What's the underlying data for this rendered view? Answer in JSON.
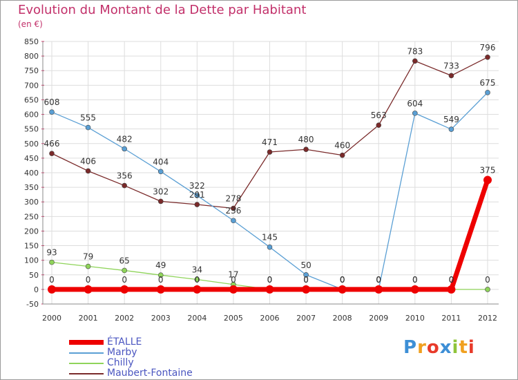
{
  "header": {
    "title": "Evolution du Montant de la Dette par Habitant",
    "subtitle": "(en €)"
  },
  "chart_data": {
    "type": "line",
    "title": "Evolution du Montant de la Dette par Habitant",
    "subtitle": "(en €)",
    "xlabel": "",
    "ylabel": "",
    "ylim": [
      -50,
      850
    ],
    "yticks": [
      -50,
      0,
      50,
      100,
      150,
      200,
      250,
      300,
      350,
      400,
      450,
      500,
      550,
      600,
      650,
      700,
      750,
      800,
      850
    ],
    "grid": true,
    "x": [
      "2000",
      "2001",
      "2002",
      "2003",
      "2004",
      "2005",
      "2006",
      "2007",
      "2008",
      "2009",
      "2010",
      "2011",
      "2012"
    ],
    "series": [
      {
        "name": "ÉTALLE",
        "color": "#ee0000",
        "values": [
          0,
          0,
          0,
          0,
          0,
          0,
          0,
          0,
          0,
          0,
          0,
          0,
          375
        ],
        "labels": [
          "0",
          "0",
          "0",
          "0",
          "0",
          "0",
          "0",
          "0",
          "0",
          "0",
          "0",
          "0",
          "375"
        ]
      },
      {
        "name": "Marby",
        "color": "#5a9fd4",
        "values": [
          608,
          555,
          482,
          404,
          322,
          236,
          145,
          50,
          0,
          0,
          604,
          549,
          675
        ],
        "labels": [
          "608",
          "555",
          "482",
          "404",
          "322",
          "236",
          "145",
          "50",
          "0",
          "0",
          "604",
          "549",
          "675"
        ]
      },
      {
        "name": "Chilly",
        "color": "#8fd45a",
        "values": [
          93,
          79,
          65,
          49,
          34,
          17,
          0,
          0,
          0,
          0,
          0,
          0,
          0
        ],
        "labels": [
          "93",
          "79",
          "65",
          "49",
          "34",
          "17",
          "0",
          "0",
          "0",
          "0",
          "0",
          "0",
          "0"
        ]
      },
      {
        "name": "Maubert-Fontaine",
        "color": "#7a2a2a",
        "values": [
          466,
          406,
          356,
          302,
          291,
          278,
          471,
          480,
          460,
          563,
          783,
          733,
          796
        ],
        "labels": [
          "466",
          "406",
          "356",
          "302",
          "291",
          "278",
          "471",
          "480",
          "460",
          "563",
          "783",
          "733",
          "796"
        ]
      }
    ],
    "legend": "bottom-left"
  },
  "legend": {
    "items": [
      {
        "label": "ÉTALLE",
        "color": "#ee0000"
      },
      {
        "label": "Marby",
        "color": "#5a9fd4"
      },
      {
        "label": "Chilly",
        "color": "#8fd45a"
      },
      {
        "label": "Maubert-Fontaine",
        "color": "#7a2a2a"
      }
    ]
  },
  "logo": {
    "letters": [
      "P",
      "r",
      "o",
      "x",
      "i",
      "t",
      "i"
    ],
    "colors": [
      "#3d8fd6",
      "#f0a020",
      "#e83a2a",
      "#3d8fd6",
      "#8fc43a",
      "#f0a020",
      "#e83a2a"
    ]
  }
}
